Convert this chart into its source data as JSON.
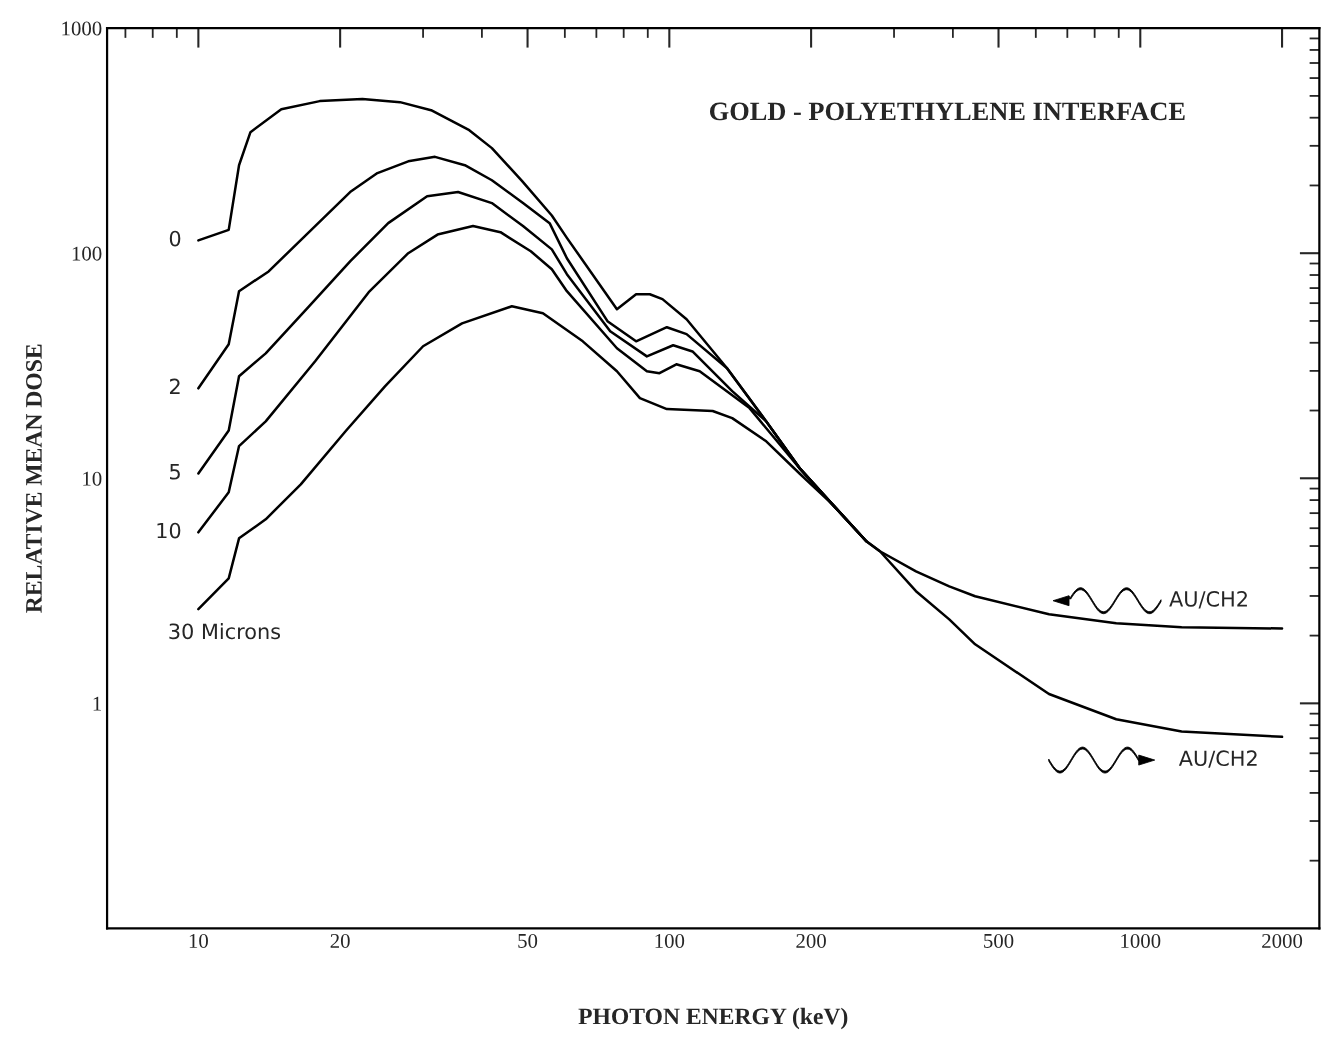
{
  "chart_data": {
    "type": "line",
    "title": "GOLD - POLYETHYLENE INTERFACE",
    "xlabel": "PHOTON ENERGY (keV)",
    "ylabel": "RELATIVE MEAN DOSE",
    "log": "xy",
    "grid": false,
    "legend": false,
    "marker": "none",
    "line_style": "solid",
    "xlim": [
      6.4,
      2400
    ],
    "ylim": [
      0.1,
      1000
    ],
    "xticks": [
      10,
      20,
      50,
      100,
      200,
      500,
      1000,
      2000
    ],
    "yticks": [
      1,
      10,
      100,
      1000
    ],
    "series": [
      {
        "name": "0",
        "color": "#000000",
        "x": [
          10,
          11.6,
          12.2,
          12.9,
          15.0,
          18.1,
          22.3,
          26.8,
          31.2,
          37.6,
          42.0,
          48.7,
          56.3,
          60.6,
          77.4,
          85.0,
          90.9,
          96.7,
          108.8,
          132.6,
          160.6,
          189,
          222,
          262,
          280,
          334,
          393,
          446,
          640,
          889,
          1224,
          2000
        ],
        "values": [
          114,
          127,
          246,
          345,
          436,
          474,
          484,
          469,
          432,
          352,
          293,
          209,
          147,
          117,
          56.4,
          65.7,
          65.7,
          62.5,
          50.9,
          30.8,
          17.9,
          11.1,
          7.66,
          5.25,
          4.74,
          3.86,
          3.31,
          2.99,
          2.49,
          2.27,
          2.18,
          2.15
        ]
      },
      {
        "name": "2",
        "color": "#000000",
        "x": [
          10,
          11.6,
          12.2,
          14.1,
          17.7,
          21.0,
          24.0,
          27.9,
          31.8,
          36.8,
          42.0,
          48.9,
          55.7,
          60.6,
          73.9,
          85.0,
          98.8,
          108.8,
          132.6,
          160.6,
          189,
          222,
          262
        ],
        "values": [
          25.1,
          39.4,
          67.8,
          83,
          132,
          187,
          227,
          256,
          268,
          246,
          211,
          167,
          136,
          95,
          49.9,
          40.6,
          46.9,
          43.7,
          30.8,
          17.9,
          11.1,
          7.66,
          5.25
        ]
      },
      {
        "name": "5",
        "color": "#000000",
        "x": [
          10,
          11.6,
          12.2,
          13.9,
          17.1,
          21.0,
          25.3,
          30.6,
          35.6,
          42.0,
          48.9,
          56.3,
          60.6,
          74.9,
          89.6,
          101.9,
          112,
          136,
          160.6,
          189,
          222,
          262
        ],
        "values": [
          10.5,
          16.3,
          28.4,
          35.9,
          57.5,
          92,
          136,
          179,
          187,
          167,
          132,
          104,
          80.7,
          45,
          34.8,
          39,
          36.6,
          24.4,
          17.9,
          11.1,
          7.66,
          5.25
        ]
      },
      {
        "name": "10",
        "color": "#000000",
        "x": [
          10,
          11.6,
          12.2,
          13.9,
          17.7,
          23.0,
          27.9,
          32.2,
          38.3,
          43.8,
          50.8,
          56.3,
          60.6,
          77.4,
          89.6,
          95.3,
          103.5,
          116,
          148,
          189,
          222,
          262
        ],
        "values": [
          5.75,
          8.67,
          13.9,
          17.9,
          33.1,
          67.1,
          100,
          121,
          132,
          124,
          102,
          84.9,
          67.8,
          37.8,
          29.9,
          29.3,
          32.1,
          29.9,
          20.5,
          11.1,
          7.66,
          5.25
        ]
      },
      {
        "name": "30 Microns",
        "color": "#000000",
        "x": [
          10,
          11.6,
          12.2,
          13.9,
          16.5,
          20.6,
          24.9,
          30.0,
          36.3,
          46.3,
          53.9,
          65.5,
          77.4,
          86.6,
          98.8,
          123.6,
          136,
          160.6,
          189,
          222,
          262,
          280,
          334,
          393,
          446,
          640,
          889,
          1224,
          2000
        ],
        "values": [
          2.62,
          3.59,
          5.41,
          6.57,
          9.4,
          16.3,
          25.6,
          38.6,
          48.8,
          58.1,
          54.1,
          40.6,
          29.9,
          22.7,
          20.3,
          19.9,
          18.5,
          14.6,
          10.5,
          7.66,
          5.25,
          4.74,
          3.15,
          2.36,
          1.83,
          1.1,
          0.85,
          0.75,
          0.71
        ]
      }
    ],
    "annotations": [
      "AU/CH2",
      "AU/CH2"
    ]
  }
}
